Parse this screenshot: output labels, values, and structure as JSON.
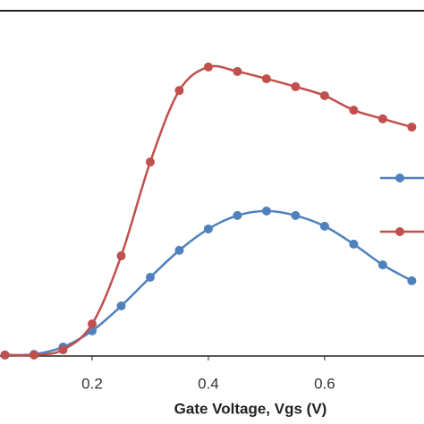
{
  "chart_data": {
    "type": "line",
    "x_label": "Gate Voltage, Vgs (V)",
    "x": [
      0.05,
      0.1,
      0.15,
      0.2,
      0.25,
      0.3,
      0.35,
      0.4,
      0.45,
      0.5,
      0.55,
      0.6,
      0.65,
      0.7,
      0.75
    ],
    "series": [
      {
        "color": "#4f81bd",
        "values": [
          0.3,
          0.5,
          2.6,
          7.3,
          14.5,
          22.8,
          30.6,
          36.8,
          40.7,
          42.0,
          40.7,
          37.6,
          32.4,
          26.4,
          21.8
        ]
      },
      {
        "color": "#c0504d",
        "values": [
          0.3,
          0.3,
          1.8,
          9.3,
          29.0,
          56.2,
          76.9,
          83.7,
          82.4,
          80.3,
          78.0,
          75.4,
          71.2,
          68.7,
          66.3
        ]
      }
    ],
    "xlim": [
      0.0415,
      0.771
    ],
    "xticks": [
      0.2,
      0.4,
      0.6
    ],
    "ylim": [
      0,
      100
    ]
  }
}
